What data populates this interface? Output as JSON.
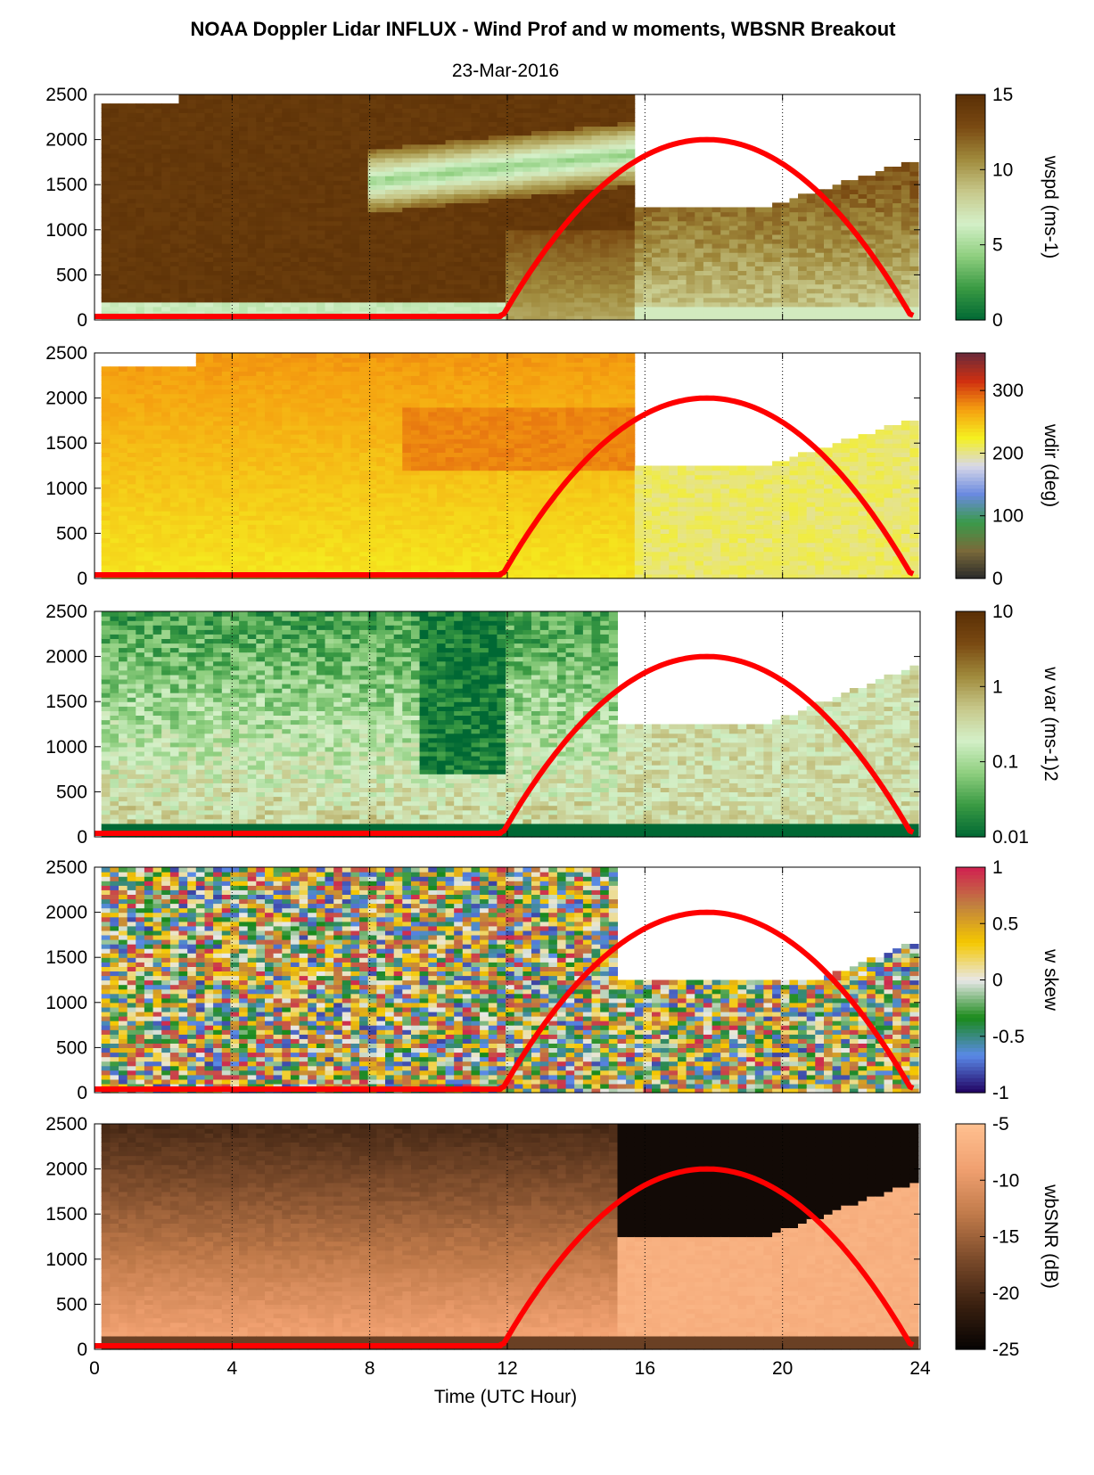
{
  "figure": {
    "title": "NOAA Doppler Lidar INFLUX - Wind Prof and w moments, WBSNR Breakout",
    "subtitle": "23-Mar-2016",
    "xlabel": "Time (UTC Hour)"
  },
  "chart_data": [
    {
      "type": "heatmap",
      "xlim": [
        0,
        24
      ],
      "ylim": [
        0,
        2500
      ],
      "x_ticks": [
        "0",
        "4",
        "8",
        "12",
        "16",
        "20",
        "24"
      ],
      "y_ticks": [
        "0",
        "500",
        "1000",
        "1500",
        "2000",
        "2500"
      ],
      "colorbar_label": "wspd (ms-1)",
      "colorbar_ticks": [
        "0",
        "5",
        "10",
        "15"
      ],
      "clim": [
        0,
        15
      ],
      "colormap": [
        "#006834",
        "#3a9a43",
        "#8fcf7f",
        "#d4f0c8",
        "#c7c88a",
        "#a08a3c",
        "#7a4a12",
        "#5a2f06"
      ],
      "overlay": {
        "name": "red curve",
        "color": "#ff0000",
        "peak_hour": 17.8,
        "peak_height": 2000,
        "start_hour": 11.8,
        "end_hour": 23.8
      }
    },
    {
      "type": "heatmap",
      "xlim": [
        0,
        24
      ],
      "ylim": [
        0,
        2500
      ],
      "x_ticks": [
        "0",
        "4",
        "8",
        "12",
        "16",
        "20",
        "24"
      ],
      "y_ticks": [
        "0",
        "500",
        "1000",
        "1500",
        "2000",
        "2500"
      ],
      "colorbar_label": "wdir (deg)",
      "colorbar_ticks": [
        "0",
        "100",
        "200",
        "300"
      ],
      "clim": [
        0,
        360
      ],
      "colormap": [
        "#2a2a2a",
        "#7a6a3a",
        "#3a9a4a",
        "#6a8ae0",
        "#d8d8e8",
        "#f5f020",
        "#f5a010",
        "#d03010",
        "#6a2a3a"
      ],
      "overlay": {
        "name": "red curve",
        "color": "#ff0000",
        "peak_hour": 17.8,
        "peak_height": 2000,
        "start_hour": 11.8,
        "end_hour": 23.8
      }
    },
    {
      "type": "heatmap",
      "xlim": [
        0,
        24
      ],
      "ylim": [
        0,
        2500
      ],
      "x_ticks": [
        "0",
        "4",
        "8",
        "12",
        "16",
        "20",
        "24"
      ],
      "y_ticks": [
        "0",
        "500",
        "1000",
        "1500",
        "2000",
        "2500"
      ],
      "colorbar_label": "w var (ms-1)2",
      "colorbar_ticks": [
        "0.01",
        "0.1",
        "1",
        "10"
      ],
      "clim": [
        0.01,
        10
      ],
      "colorbar_scale": "log",
      "colormap": [
        "#006834",
        "#3a9a43",
        "#8fcf7f",
        "#d4f0c8",
        "#c7c88a",
        "#a08a3c",
        "#7a4a12",
        "#5a2f06"
      ],
      "overlay": {
        "name": "red curve",
        "color": "#ff0000",
        "peak_hour": 17.8,
        "peak_height": 2000,
        "start_hour": 11.8,
        "end_hour": 23.8
      }
    },
    {
      "type": "heatmap",
      "xlim": [
        0,
        24
      ],
      "ylim": [
        0,
        2500
      ],
      "x_ticks": [
        "0",
        "4",
        "8",
        "12",
        "16",
        "20",
        "24"
      ],
      "y_ticks": [
        "0",
        "500",
        "1000",
        "1500",
        "2000",
        "2500"
      ],
      "colorbar_label": "w skew",
      "colorbar_ticks": [
        "-1",
        "-0.5",
        "0",
        "0.5",
        "1"
      ],
      "clim": [
        -1,
        1
      ],
      "colormap": [
        "#200060",
        "#5a8ae8",
        "#1a8a1a",
        "#e8e8e8",
        "#f5c800",
        "#c08040",
        "#d02050"
      ],
      "overlay": {
        "name": "red curve",
        "color": "#ff0000",
        "peak_hour": 17.8,
        "peak_height": 2000,
        "start_hour": 11.8,
        "end_hour": 23.8
      }
    },
    {
      "type": "heatmap",
      "xlim": [
        0,
        24
      ],
      "ylim": [
        0,
        2500
      ],
      "x_ticks": [
        "0",
        "4",
        "8",
        "12",
        "16",
        "20",
        "24"
      ],
      "y_ticks": [
        "0",
        "500",
        "1000",
        "1500",
        "2000",
        "2500"
      ],
      "colorbar_label": "wbSNR (dB)",
      "colorbar_ticks": [
        "-25",
        "-20",
        "-15",
        "-10",
        "-5"
      ],
      "clim": [
        -25,
        -5
      ],
      "colormap": [
        "#050302",
        "#3a2010",
        "#7a4a2a",
        "#c07a4a",
        "#f0a070",
        "#ffc090"
      ],
      "overlay": {
        "name": "red curve",
        "color": "#ff0000",
        "peak_hour": 17.8,
        "peak_height": 2000,
        "start_hour": 11.8,
        "end_hour": 23.8
      }
    }
  ]
}
